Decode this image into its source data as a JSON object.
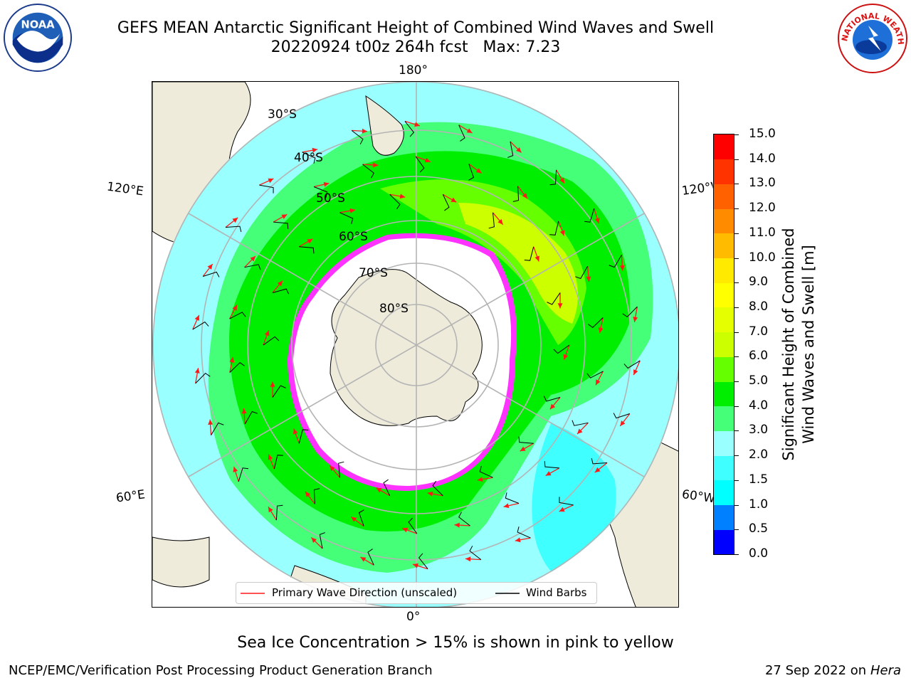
{
  "header": {
    "title_line1": "GEFS MEAN Antarctic Significant Height of Combined Wind Waves and Swell",
    "title_line2": "20220924 t00z 264h fcst   Max: 7.23"
  },
  "logos": {
    "left": {
      "text": "NOAA",
      "icon": "noaa-logo-icon"
    },
    "right": {
      "text": "NATIONAL WEATHER SERVICE",
      "icon": "nws-logo-icon"
    }
  },
  "map": {
    "projection": "south-polar-stereographic",
    "longitude_labels": {
      "top": "180°",
      "upper_left": "120°E",
      "upper_right": "120°W",
      "lower_left": "60°E",
      "lower_right": "60°W",
      "bottom": "0°"
    },
    "latitude_labels": [
      "30°S",
      "40°S",
      "50°S",
      "60°S",
      "70°S",
      "80°S"
    ],
    "colors": {
      "land": "#eeebdb",
      "ice_edge": "#ff33ff",
      "wave_arrow": "#ff1a1a",
      "wind_barb": "#000000"
    }
  },
  "legend": {
    "wave_direction": "Primary Wave Direction (unscaled)",
    "wind_barbs": "Wind Barbs"
  },
  "colorbar": {
    "label_line1": "Significant Height of Combined",
    "label_line2": "Wind Waves and Swell [m]",
    "ticks": [
      "0.0",
      "0.5",
      "1.0",
      "1.5",
      "2.0",
      "3.0",
      "4.0",
      "5.0",
      "6.0",
      "7.0",
      "8.0",
      "9.0",
      "10.0",
      "11.0",
      "12.0",
      "13.0",
      "14.0",
      "15.0"
    ],
    "colors": [
      "#0000ff",
      "#0080ff",
      "#00ffff",
      "#40ffff",
      "#99ffff",
      "#44ff77",
      "#00ee00",
      "#66ff00",
      "#ccff00",
      "#e6ff00",
      "#ffff00",
      "#ffea00",
      "#ffbb00",
      "#ff8c00",
      "#ff6000",
      "#ff3300",
      "#ff0000"
    ]
  },
  "footer": {
    "sea_ice_note": "Sea Ice Concentration > 15% is shown in pink to yellow",
    "left": "NCEP/EMC/Verification Post Processing Product Generation Branch",
    "right_prefix": "27 Sep 2022 on",
    "right_host": "Hera"
  }
}
